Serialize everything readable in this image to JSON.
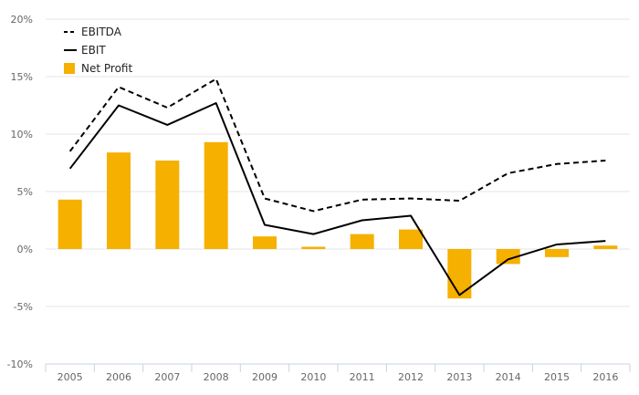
{
  "chart_data": {
    "type": "bar",
    "categories": [
      "2005",
      "2006",
      "2007",
      "2008",
      "2009",
      "2010",
      "2011",
      "2012",
      "2013",
      "2014",
      "2015",
      "2016"
    ],
    "y_ticks": [
      "20%",
      "15%",
      "10%",
      "5%",
      "0%",
      "-5%",
      "-10%"
    ],
    "y_tick_values": [
      20,
      15,
      10,
      5,
      0,
      -5,
      -10
    ],
    "ylim": [
      -10,
      20
    ],
    "y_unit": "%",
    "grid": true,
    "legend_position": "top-left",
    "series": [
      {
        "name": "EBITDA",
        "kind": "line",
        "style": "dashed",
        "color": "#000000",
        "values": [
          8.5,
          14.1,
          12.3,
          14.8,
          4.4,
          3.3,
          4.3,
          4.4,
          4.2,
          6.6,
          7.4,
          7.7
        ]
      },
      {
        "name": "EBIT",
        "kind": "line",
        "style": "solid",
        "color": "#000000",
        "values": [
          7.0,
          12.5,
          10.8,
          12.7,
          2.1,
          1.3,
          2.5,
          2.9,
          -4.0,
          -0.9,
          0.4,
          0.7
        ]
      },
      {
        "name": "Net Profit",
        "kind": "bar",
        "color": "#F5B000",
        "values": [
          4.3,
          8.4,
          7.7,
          9.3,
          1.1,
          0.2,
          1.3,
          1.7,
          -4.3,
          -1.3,
          -0.7,
          0.3
        ]
      }
    ]
  }
}
